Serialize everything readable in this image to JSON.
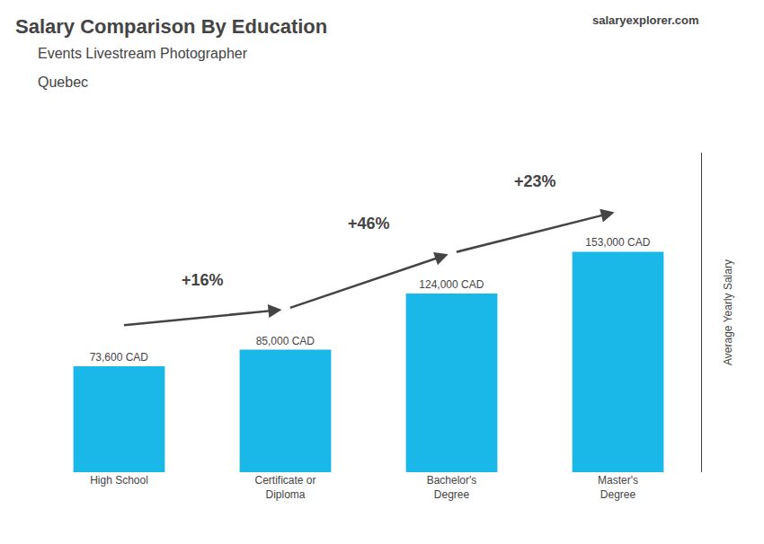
{
  "chart_data": {
    "type": "bar",
    "title": "Salary Comparison By Education",
    "subtitle": "Events Livestream Photographer",
    "ylabel": "Average Yearly Salary",
    "categories": [
      "High School",
      "Certificate or\nDiploma",
      "Bachelor's\nDegree",
      "Master's\nDegree"
    ],
    "values": [
      73600,
      85000,
      124000,
      153000
    ],
    "value_labels": [
      "73,600 CAD",
      "85,000 CAD",
      "124,000 CAD",
      "153,000 CAD"
    ],
    "data_labels": true,
    "color": "#1ab8e8",
    "ylim": [
      0,
      221850
    ],
    "tick_labels": "x",
    "grid": false,
    "legend": "none",
    "annotations": [
      {
        "text": "Quebec"
      },
      {
        "text": "salaryexplorer.com"
      },
      {
        "text": "+16%",
        "from": "High School",
        "to": "Certificate or\nDiploma"
      },
      {
        "text": "+46%",
        "from": "Certificate or\nDiploma",
        "to": "Bachelor's\nDegree"
      },
      {
        "text": "+23%",
        "from": "Bachelor's\nDegree",
        "to": "Master's\nDegree"
      }
    ]
  }
}
